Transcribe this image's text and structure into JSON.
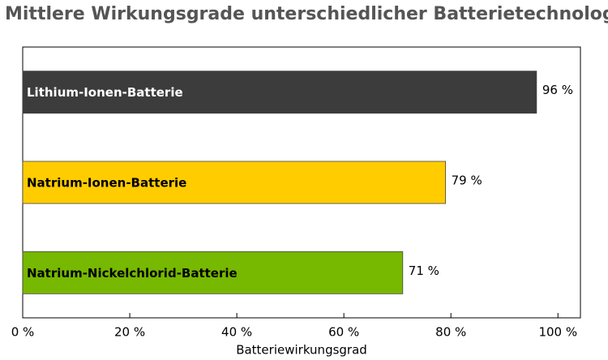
{
  "chart_data": {
    "type": "barh",
    "title": "Mittlere Wirkungsgrade unterschiedlicher Batterietechnologien",
    "categories": [
      "Lithium-Ionen-Batterie",
      "Natrium-Ionen-Batterie",
      "Natrium-Nickelchlorid-Batterie"
    ],
    "series": [
      {
        "values": [
          96,
          79,
          71
        ],
        "value_labels": [
          "96 %",
          "79 %",
          "71 %"
        ],
        "colors": [
          "#3c3c3c",
          "#ffcc00",
          "#77b800"
        ]
      }
    ],
    "x_label": "Batteriewirkungsgrad",
    "xlim": [
      0,
      104.2
    ],
    "xticks": [
      {
        "value": 0,
        "label": "0 %"
      },
      {
        "value": 20,
        "label": "20 %"
      },
      {
        "value": 40,
        "label": "40 %"
      },
      {
        "value": 60,
        "label": "60 %"
      },
      {
        "value": 80,
        "label": "80 %"
      },
      {
        "value": 100,
        "label": "100 %"
      }
    ]
  }
}
